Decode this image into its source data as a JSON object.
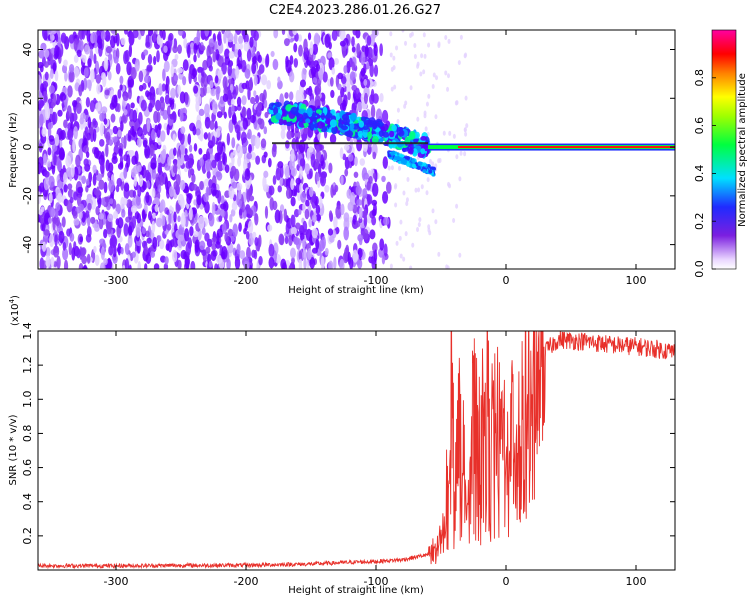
{
  "title": "C2E4.2023.286.01.26.G27",
  "chart_data": [
    {
      "type": "heatmap",
      "name": "spectrogram",
      "xlabel": "Height of straight line (km)",
      "ylabel": "Frequency (Hz)",
      "xlim": [
        -360,
        130
      ],
      "ylim": [
        -50,
        48
      ],
      "xticks": [
        -300,
        -200,
        -100,
        0,
        100
      ],
      "yticks": [
        -40,
        -20,
        0,
        20,
        40
      ],
      "colorbar": {
        "label": "Normalized spectral amplitude",
        "range": [
          0,
          1
        ],
        "ticks": [
          0.0,
          0.2,
          0.4,
          0.6,
          0.8
        ]
      },
      "features": {
        "noise_region_x": [
          -360,
          -90
        ],
        "bright_band_x": [
          -180,
          -60
        ],
        "bright_band_freq_hz": [
          14,
          0
        ],
        "carrier_x": [
          -60,
          130
        ],
        "carrier_freq_hz": 0
      }
    },
    {
      "type": "line",
      "name": "snr",
      "xlabel": "Height of straight line (km)",
      "ylabel": "SNR (10 * v/v)",
      "yscale_label": "(x10",
      "yscale_exp": "4",
      "yscale_close": ")",
      "xlim": [
        -360,
        130
      ],
      "ylim": [
        0,
        14000
      ],
      "xticks": [
        -300,
        -200,
        -100,
        0,
        100
      ],
      "yticks": [
        0.2,
        0.4,
        0.6,
        0.8,
        1.0,
        1.2,
        1.4
      ],
      "series": [
        {
          "name": "SNR",
          "color": "#e8302a",
          "x": [
            -360,
            -300,
            -200,
            -150,
            -120,
            -100,
            -80,
            -60,
            -50,
            -45,
            -42,
            -40,
            -35,
            -30,
            -25,
            -20,
            -15,
            -10,
            -5,
            0,
            10,
            20,
            30,
            40,
            60,
            80,
            100,
            120,
            130
          ],
          "y": [
            250,
            250,
            280,
            350,
            450,
            500,
            600,
            900,
            2000,
            6000,
            11000,
            7000,
            9000,
            5000,
            10000,
            8000,
            10500,
            8500,
            9500,
            8000,
            10000,
            11500,
            12800,
            13500,
            13400,
            13200,
            13100,
            12900,
            12800
          ]
        }
      ]
    }
  ]
}
